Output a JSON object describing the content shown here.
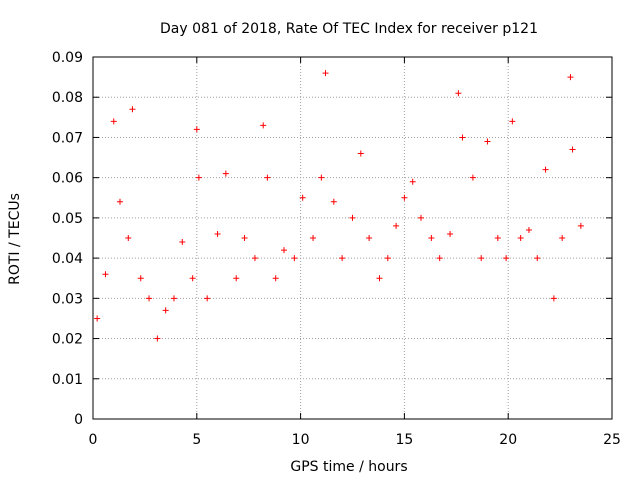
{
  "chart_data": {
    "type": "scatter",
    "title": "Day 081 of 2018, Rate Of TEC Index for receiver p121",
    "xlabel": "GPS time / hours",
    "ylabel": "ROTI / TECUs",
    "xlim": [
      0,
      25
    ],
    "ylim": [
      0,
      0.09
    ],
    "xticks": [
      "0",
      "5",
      "10",
      "15",
      "20",
      "25"
    ],
    "yticks": [
      "0",
      "0.01",
      "0.02",
      "0.03",
      "0.04",
      "0.05",
      "0.06",
      "0.07",
      "0.08",
      "0.09"
    ],
    "grid": true,
    "marker": "+",
    "color": "#ff0000",
    "series": [
      {
        "x": [
          0.2,
          0.6,
          1.0,
          1.3,
          1.7,
          1.9,
          2.3,
          2.7,
          3.1,
          3.5,
          3.9,
          4.3,
          4.8,
          5.0,
          5.1,
          5.5,
          6.0,
          6.4,
          6.9,
          7.3,
          7.8,
          8.2,
          8.4,
          8.8,
          9.2,
          9.7,
          10.1,
          10.6,
          11.0,
          11.2,
          11.6,
          12.0,
          12.5,
          12.9,
          13.3,
          13.8,
          14.2,
          14.6,
          15.0,
          15.4,
          15.8,
          16.3,
          16.7,
          17.2,
          17.6,
          17.8,
          18.3,
          18.7,
          19.0,
          19.5,
          19.9,
          20.2,
          20.6,
          21.0,
          21.4,
          21.8,
          22.2,
          22.6,
          23.0,
          23.1,
          23.5
        ],
        "y": [
          0.025,
          0.036,
          0.074,
          0.054,
          0.045,
          0.077,
          0.035,
          0.03,
          0.02,
          0.027,
          0.03,
          0.044,
          0.035,
          0.072,
          0.06,
          0.03,
          0.046,
          0.061,
          0.035,
          0.045,
          0.04,
          0.073,
          0.06,
          0.035,
          0.042,
          0.04,
          0.055,
          0.045,
          0.06,
          0.086,
          0.054,
          0.04,
          0.05,
          0.066,
          0.045,
          0.035,
          0.04,
          0.048,
          0.055,
          0.059,
          0.05,
          0.045,
          0.04,
          0.046,
          0.081,
          0.07,
          0.06,
          0.04,
          0.069,
          0.045,
          0.04,
          0.074,
          0.045,
          0.047,
          0.04,
          0.062,
          0.03,
          0.045,
          0.085,
          0.067,
          0.048
        ]
      }
    ]
  }
}
